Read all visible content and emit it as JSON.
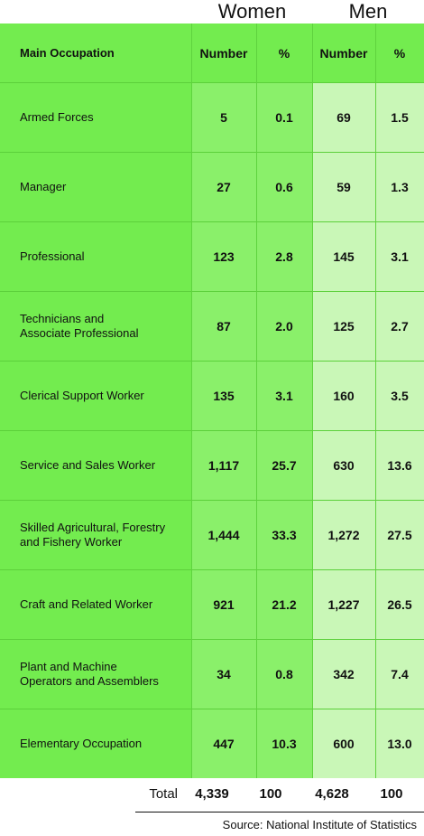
{
  "groups": {
    "women": "Women",
    "men": "Men"
  },
  "headers": {
    "occupation": "Main Occupation",
    "women_number": "Number",
    "women_pct": "%",
    "men_number": "Number",
    "men_pct": "%"
  },
  "chart_data": {
    "type": "table",
    "columns": [
      "Main Occupation",
      "Women Number",
      "Women %",
      "Men Number",
      "Men %"
    ],
    "rows": [
      {
        "occupation": "Armed Forces",
        "women_number": "5",
        "women_pct": "0.1",
        "men_number": "69",
        "men_pct": "1.5"
      },
      {
        "occupation": "Manager",
        "women_number": "27",
        "women_pct": "0.6",
        "men_number": "59",
        "men_pct": "1.3"
      },
      {
        "occupation": "Professional",
        "women_number": "123",
        "women_pct": "2.8",
        "men_number": "145",
        "men_pct": "3.1"
      },
      {
        "occupation": "Technicians and\nAssociate Professional",
        "women_number": "87",
        "women_pct": "2.0",
        "men_number": "125",
        "men_pct": "2.7"
      },
      {
        "occupation": "Clerical Support Worker",
        "women_number": "135",
        "women_pct": "3.1",
        "men_number": "160",
        "men_pct": "3.5"
      },
      {
        "occupation": "Service and Sales Worker",
        "women_number": "1,117",
        "women_pct": "25.7",
        "men_number": "630",
        "men_pct": "13.6"
      },
      {
        "occupation": "Skilled Agricultural, Forestry\nand Fishery Worker",
        "women_number": "1,444",
        "women_pct": "33.3",
        "men_number": "1,272",
        "men_pct": "27.5"
      },
      {
        "occupation": "Craft and Related Worker",
        "women_number": "921",
        "women_pct": "21.2",
        "men_number": "1,227",
        "men_pct": "26.5"
      },
      {
        "occupation": "Plant and Machine\nOperators and Assemblers",
        "women_number": "34",
        "women_pct": "0.8",
        "men_number": "342",
        "men_pct": "7.4"
      },
      {
        "occupation": "Elementary Occupation",
        "women_number": "447",
        "women_pct": "10.3",
        "men_number": "600",
        "men_pct": "13.0"
      }
    ],
    "total": {
      "label": "Total",
      "women_number": "4,339",
      "women_pct": "100",
      "men_number": "4,628",
      "men_pct": "100"
    }
  },
  "source": "Source: National Institute of Statistics",
  "colors": {
    "header_green": "#73ec4f",
    "women_green": "#8af06a",
    "men_green": "#c9f7b7",
    "occupation_green": "#73ec4f"
  }
}
